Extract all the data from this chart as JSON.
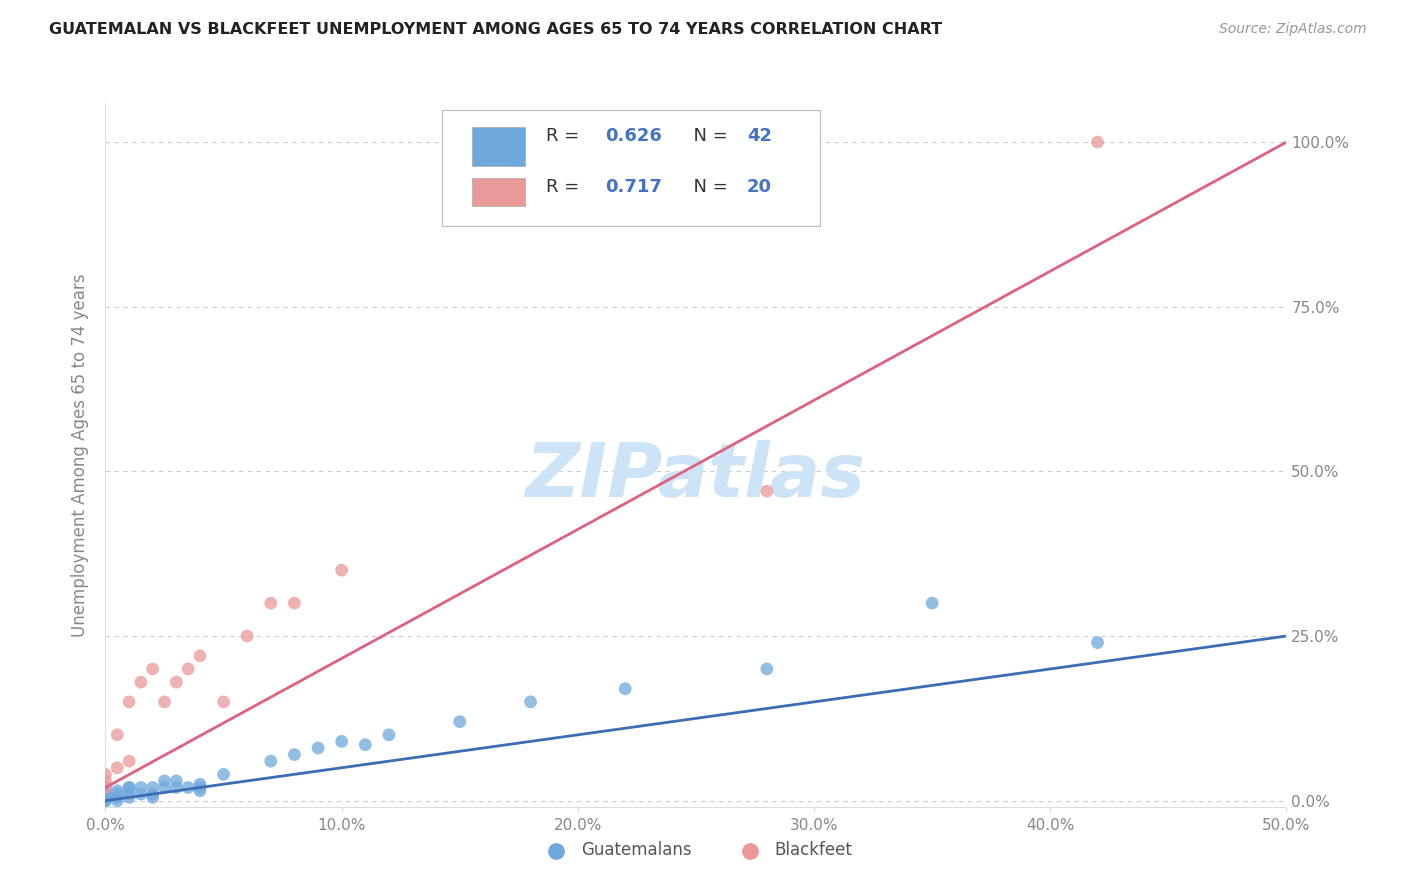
{
  "title": "GUATEMALAN VS BLACKFEET UNEMPLOYMENT AMONG AGES 65 TO 74 YEARS CORRELATION CHART",
  "source": "Source: ZipAtlas.com",
  "ylabel": "Unemployment Among Ages 65 to 74 years",
  "xlim": [
    0.0,
    0.5
  ],
  "ylim": [
    -0.01,
    1.06
  ],
  "guatemalan_color": "#6fa8dc",
  "blackfeet_color": "#ea9999",
  "guatemalan_line_color": "#3d6eb5",
  "blackfeet_line_color": "#e06080",
  "background_color": "#ffffff",
  "grid_color": "#cccccc",
  "title_color": "#222222",
  "source_color": "#999999",
  "label_color": "#888888",
  "watermark_color": "#cce4f5",
  "guatemalan_x": [
    0.0,
    0.0,
    0.0,
    0.0,
    0.0,
    0.0,
    0.0,
    0.0,
    0.005,
    0.005,
    0.005,
    0.005,
    0.01,
    0.01,
    0.01,
    0.01,
    0.015,
    0.015,
    0.02,
    0.02,
    0.02,
    0.025,
    0.025,
    0.03,
    0.03,
    0.035,
    0.04,
    0.04,
    0.04,
    0.05,
    0.07,
    0.08,
    0.09,
    0.1,
    0.11,
    0.12,
    0.15,
    0.18,
    0.22,
    0.28,
    0.35,
    0.42
  ],
  "guatemalan_y": [
    0.0,
    0.0,
    0.005,
    0.005,
    0.01,
    0.01,
    0.01,
    0.02,
    0.0,
    0.005,
    0.01,
    0.015,
    0.005,
    0.01,
    0.02,
    0.02,
    0.01,
    0.02,
    0.005,
    0.01,
    0.02,
    0.02,
    0.03,
    0.02,
    0.03,
    0.02,
    0.015,
    0.02,
    0.025,
    0.04,
    0.06,
    0.07,
    0.08,
    0.09,
    0.085,
    0.1,
    0.12,
    0.15,
    0.17,
    0.2,
    0.3,
    0.24
  ],
  "blackfeet_x": [
    0.0,
    0.0,
    0.0,
    0.005,
    0.005,
    0.01,
    0.01,
    0.015,
    0.02,
    0.025,
    0.03,
    0.035,
    0.04,
    0.05,
    0.06,
    0.07,
    0.08,
    0.1,
    0.28,
    0.42
  ],
  "blackfeet_y": [
    0.02,
    0.03,
    0.04,
    0.05,
    0.1,
    0.06,
    0.15,
    0.18,
    0.2,
    0.15,
    0.18,
    0.2,
    0.22,
    0.15,
    0.25,
    0.3,
    0.3,
    0.35,
    0.47,
    1.0
  ],
  "guatemalan_trend_x": [
    0.0,
    0.5
  ],
  "guatemalan_trend_y": [
    0.0,
    0.25
  ],
  "blackfeet_trend_x": [
    0.0,
    0.5
  ],
  "blackfeet_trend_y": [
    0.02,
    1.0
  ],
  "x_ticks": [
    0.0,
    0.1,
    0.2,
    0.3,
    0.4,
    0.5
  ],
  "x_tick_labels": [
    "0.0%",
    "10.0%",
    "20.0%",
    "30.0%",
    "40.0%",
    "50.0%"
  ],
  "y_ticks": [
    0.0,
    0.25,
    0.5,
    0.75,
    1.0
  ],
  "y_tick_labels": [
    "0.0%",
    "25.0%",
    "50.0%",
    "75.0%",
    "100.0%"
  ],
  "r_guatemalan": "0.626",
  "n_guatemalan": "42",
  "r_blackfeet": "0.717",
  "n_blackfeet": "20"
}
